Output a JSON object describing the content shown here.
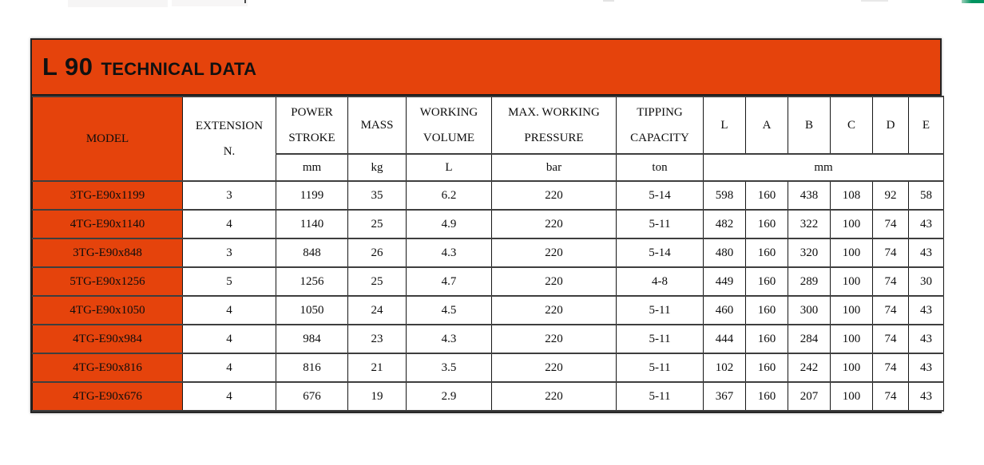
{
  "page": {
    "background_color": "#ffffff",
    "accent_orange": "#E5430C",
    "green_strip_color": "#00935F",
    "border_dark": "#242424"
  },
  "table": {
    "title": {
      "model_name": "L 90",
      "suffix": "TECHNICAL DATA"
    },
    "header": {
      "model": "MODEL",
      "extension": "EXTENSION\nN.",
      "power_stroke": "POWER\nSTROKE",
      "mass": "MASS",
      "working_volume": "WORKING\nVOLUME",
      "max_working_pressure": "MAX. WORKING\nPRESSURE",
      "tipping_capacity": "TIPPING\nCAPACITY",
      "dim_l": "L",
      "dim_a": "A",
      "dim_b": "B",
      "dim_c": "C",
      "dim_d": "D",
      "dim_e": "E"
    },
    "units": {
      "power_stroke": "mm",
      "mass": "kg",
      "working_volume": "L",
      "max_working_pressure": "bar",
      "tipping_capacity": "ton",
      "dims": "mm"
    },
    "column_keys": [
      "model",
      "extension",
      "power_stroke",
      "mass",
      "working_volume",
      "max_working_pressure",
      "tipping_capacity",
      "L",
      "A",
      "B",
      "C",
      "D",
      "E"
    ],
    "rows": [
      {
        "model": "3TG-E90x1199",
        "extension": "3",
        "power_stroke": "1199",
        "mass": "35",
        "working_volume": "6.2",
        "max_working_pressure": "220",
        "tipping_capacity": "5-14",
        "L": "598",
        "A": "160",
        "B": "438",
        "C": "108",
        "D": "92",
        "E": "58"
      },
      {
        "model": "4TG-E90x1140",
        "extension": "4",
        "power_stroke": "1140",
        "mass": "25",
        "working_volume": "4.9",
        "max_working_pressure": "220",
        "tipping_capacity": "5-11",
        "L": "482",
        "A": "160",
        "B": "322",
        "C": "100",
        "D": "74",
        "E": "43"
      },
      {
        "model": "3TG-E90x848",
        "extension": "3",
        "power_stroke": "848",
        "mass": "26",
        "working_volume": "4.3",
        "max_working_pressure": "220",
        "tipping_capacity": "5-14",
        "L": "480",
        "A": "160",
        "B": "320",
        "C": "100",
        "D": "74",
        "E": "43"
      },
      {
        "model": "5TG-E90x1256",
        "extension": "5",
        "power_stroke": "1256",
        "mass": "25",
        "working_volume": "4.7",
        "max_working_pressure": "220",
        "tipping_capacity": "4-8",
        "L": "449",
        "A": "160",
        "B": "289",
        "C": "100",
        "D": "74",
        "E": "30"
      },
      {
        "model": "4TG-E90x1050",
        "extension": "4",
        "power_stroke": "1050",
        "mass": "24",
        "working_volume": "4.5",
        "max_working_pressure": "220",
        "tipping_capacity": "5-11",
        "L": "460",
        "A": "160",
        "B": "300",
        "C": "100",
        "D": "74",
        "E": "43"
      },
      {
        "model": "4TG-E90x984",
        "extension": "4",
        "power_stroke": "984",
        "mass": "23",
        "working_volume": "4.3",
        "max_working_pressure": "220",
        "tipping_capacity": "5-11",
        "L": "444",
        "A": "160",
        "B": "284",
        "C": "100",
        "D": "74",
        "E": "43"
      },
      {
        "model": "4TG-E90x816",
        "extension": "4",
        "power_stroke": "816",
        "mass": "21",
        "working_volume": "3.5",
        "max_working_pressure": "220",
        "tipping_capacity": "5-11",
        "L": "102",
        "A": "160",
        "B": "242",
        "C": "100",
        "D": "74",
        "E": "43"
      },
      {
        "model": "4TG-E90x676",
        "extension": "4",
        "power_stroke": "676",
        "mass": "19",
        "working_volume": "2.9",
        "max_working_pressure": "220",
        "tipping_capacity": "5-11",
        "L": "367",
        "A": "160",
        "B": "207",
        "C": "100",
        "D": "74",
        "E": "43"
      }
    ]
  }
}
